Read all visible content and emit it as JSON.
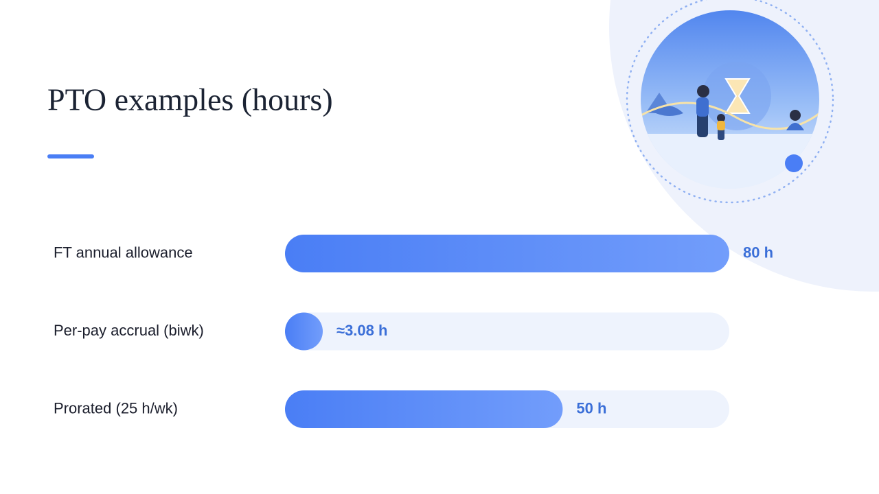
{
  "chart_data": {
    "type": "bar",
    "orientation": "horizontal",
    "title": "PTO examples (hours)",
    "categories": [
      "FT annual allowance",
      "Per-pay accrual (biwk)",
      "Prorated (25 h/wk)"
    ],
    "values": [
      80,
      3.08,
      50
    ],
    "value_labels": [
      "80 h",
      "≈3.08 h",
      "50 h"
    ],
    "color": "#4a7ef5"
  }
}
